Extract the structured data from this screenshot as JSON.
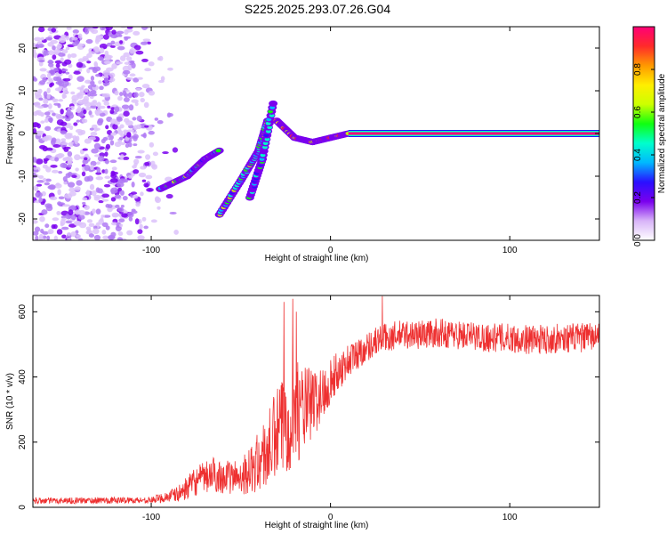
{
  "figure_title": "S225.2025.293.07.26.G04",
  "chart_data": [
    {
      "type": "heatmap",
      "title": "S225.2025.293.07.26.G04",
      "xlabel": "Height of straight line (km)",
      "ylabel": "Frequency (Hz)",
      "xlim": [
        -166,
        150
      ],
      "ylim": [
        -25,
        25
      ],
      "x_ticks": [
        -100,
        0,
        100
      ],
      "y_ticks": [
        -20,
        -10,
        0,
        10,
        20
      ],
      "colorbar": {
        "label": "Normalized spectral amplitude",
        "range": [
          0,
          1
        ],
        "ticks": [
          0.0,
          0.2,
          0.4,
          0.6,
          0.8
        ],
        "tick_labels": [
          "0.0",
          "0.2",
          "0.4",
          "0.6",
          "0.8"
        ],
        "colors": [
          "#ffffff",
          "#d8b4f8",
          "#7a00ee",
          "#2a10ff",
          "#00b8ff",
          "#00ffcc",
          "#10ff10",
          "#ccff00",
          "#ffee00",
          "#ff9900",
          "#ff2a2a",
          "#ff0077"
        ]
      },
      "features": [
        {
          "name": "noise-region",
          "x_range": [
            -166,
            -85
          ],
          "y_range": [
            -25,
            25
          ],
          "level": "low"
        },
        {
          "name": "track-a",
          "points": [
            [
              -95,
              -13
            ],
            [
              -80,
              -10
            ],
            [
              -70,
              -6
            ],
            [
              -62,
              -4
            ]
          ],
          "level": "mid"
        },
        {
          "name": "track-b",
          "points": [
            [
              -62,
              -19
            ],
            [
              -50,
              -11
            ],
            [
              -40,
              -4
            ],
            [
              -35,
              3
            ]
          ],
          "level": "mid"
        },
        {
          "name": "track-c",
          "points": [
            [
              -45,
              -15
            ],
            [
              -38,
              -6
            ],
            [
              -32,
              7
            ]
          ],
          "level": "low"
        },
        {
          "name": "transition",
          "points": [
            [
              -30,
              3
            ],
            [
              -20,
              -1
            ],
            [
              -10,
              -2
            ],
            [
              0,
              -1
            ],
            [
              10,
              0
            ]
          ],
          "level": "high"
        },
        {
          "name": "carrier-line",
          "points": [
            [
              10,
              0
            ],
            [
              150,
              0
            ]
          ],
          "level": "max"
        }
      ]
    },
    {
      "type": "line",
      "xlabel": "Height of straight line (km)",
      "ylabel": "SNR (10 * v/v)",
      "xlim": [
        -166,
        150
      ],
      "ylim": [
        0,
        650
      ],
      "x_ticks": [
        -100,
        0,
        100
      ],
      "y_ticks": [
        0,
        200,
        400,
        600
      ],
      "series": [
        {
          "name": "SNR",
          "color": "#ee3030",
          "envelope": {
            "x": [
              -166,
              -100,
              -85,
              -75,
              -65,
              -55,
              -45,
              -35,
              -30,
              -25,
              -20,
              -15,
              -10,
              -5,
              0,
              5,
              10,
              15,
              20,
              25,
              30,
              35,
              40,
              50,
              60,
              70,
              80,
              90,
              100,
              110,
              120,
              130,
              140,
              150
            ],
            "y": [
              20,
              22,
              40,
              80,
              100,
              90,
              110,
              170,
              220,
              260,
              290,
              300,
              320,
              340,
              390,
              420,
              450,
              470,
              490,
              510,
              520,
              525,
              530,
              530,
              535,
              530,
              525,
              520,
              520,
              515,
              515,
              520,
              520,
              525
            ],
            "spread": [
              10,
              10,
              25,
              45,
              55,
              50,
              70,
              120,
              150,
              160,
              160,
              140,
              110,
              90,
              70,
              60,
              55,
              50,
              45,
              45,
              45,
              45,
              45,
              45,
              45,
              45,
              45,
              45,
              45,
              45,
              45,
              45,
              45,
              45
            ]
          },
          "spikes": [
            [
              -26,
              630
            ],
            [
              -21,
              640
            ],
            [
              -19,
              600
            ],
            [
              29,
              648
            ]
          ]
        }
      ]
    }
  ]
}
